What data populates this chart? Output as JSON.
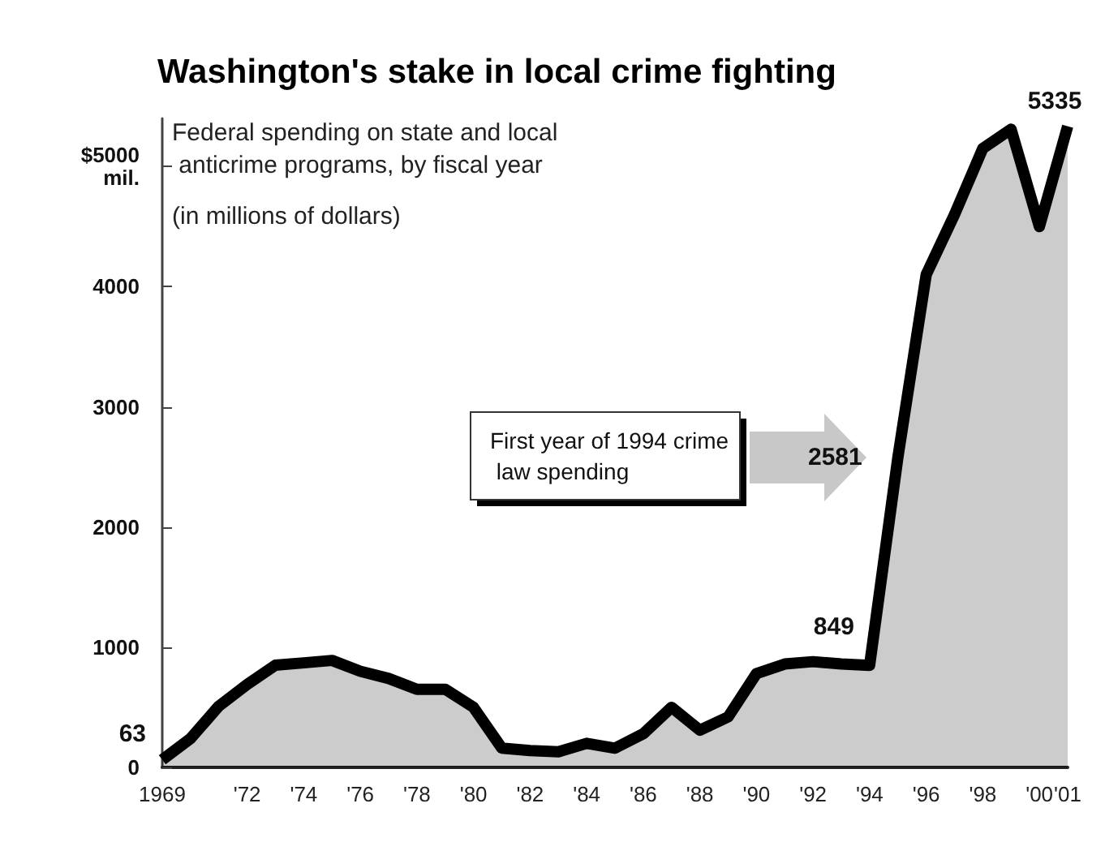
{
  "chart_data": {
    "type": "area",
    "title": "Washington's stake in local crime fighting",
    "subtitle": "Federal spending on state and local anticrime programs, by fiscal year",
    "ylabel": "(in millions of dollars)",
    "annotations": [
      "First year of 1994 crime law spending"
    ],
    "categories": [
      "1969",
      null,
      null,
      "'72",
      null,
      "'74",
      null,
      "'76",
      null,
      "'78",
      null,
      "'80",
      null,
      "'82",
      null,
      "'84",
      null,
      "'86",
      null,
      "'88",
      null,
      "'90",
      null,
      "'92",
      null,
      "'94",
      null,
      "'96",
      null,
      "'98",
      null,
      "'00",
      "'01"
    ],
    "series": [
      {
        "color": "#000000",
        "values": [
          63,
          240,
          510,
          690,
          850,
          870,
          890,
          800,
          740,
          650,
          650,
          500,
          160,
          140,
          130,
          200,
          160,
          280,
          500,
          310,
          420,
          780,
          860,
          880,
          860,
          849,
          2581,
          4100,
          4600,
          5150,
          5310,
          4500,
          5335
        ],
        "value_labels": [
          "63",
          null,
          null,
          null,
          null,
          null,
          null,
          null,
          null,
          null,
          null,
          null,
          null,
          null,
          null,
          null,
          null,
          null,
          null,
          null,
          null,
          null,
          null,
          null,
          null,
          "849",
          "2581",
          null,
          null,
          null,
          null,
          null,
          "5335"
        ]
      }
    ],
    "ylim": [
      0,
      5400
    ],
    "yticks": [
      0,
      1000,
      2000,
      3000,
      4000,
      {
        "value": 5000,
        "label": "$5000 mil."
      }
    ],
    "grid": false
  }
}
